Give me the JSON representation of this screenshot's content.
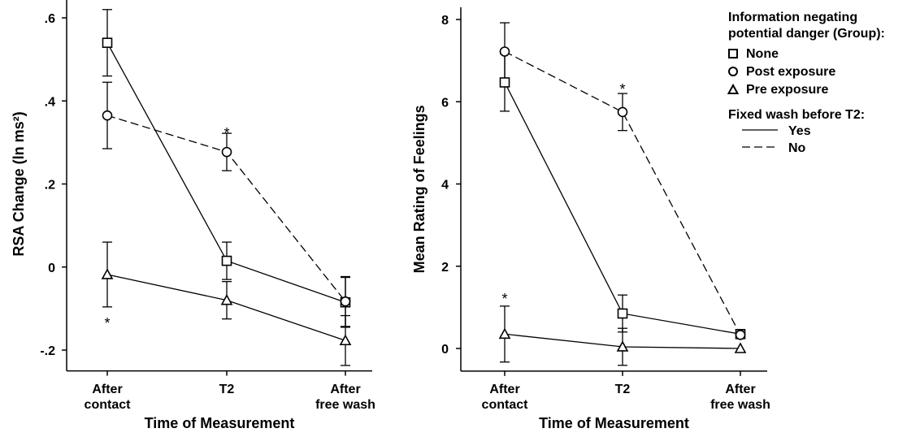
{
  "legend": {
    "title_line1": "Information negating",
    "title_line2": "potential danger (Group):",
    "groups": [
      {
        "label": "None",
        "marker": "square"
      },
      {
        "label": "Post exposure",
        "marker": "circle"
      },
      {
        "label": "Pre exposure",
        "marker": "triangle"
      }
    ],
    "wash_title": "Fixed wash before T2:",
    "wash": [
      {
        "label": "Yes",
        "line": "solid"
      },
      {
        "label": "No",
        "line": "dashed"
      }
    ]
  },
  "chart_data": [
    {
      "type": "line",
      "xlabel": "Time of Measurement",
      "ylabel": "RSA Change (ln ms²)",
      "categories": [
        [
          "After",
          "contact"
        ],
        [
          "T2"
        ],
        [
          "After",
          "free wash"
        ]
      ],
      "ylim": [
        -0.25,
        0.65
      ],
      "yticks": [
        -0.2,
        0,
        0.2,
        0.4,
        0.6
      ],
      "ytick_labels": [
        "-.2",
        "0",
        ".2",
        ".4",
        ".6"
      ],
      "grid": false,
      "series": [
        {
          "group": "None",
          "marker": "square",
          "line": "solid",
          "values": [
            0.54,
            0.015,
            -0.085
          ],
          "err": [
            0.08,
            0.045,
            0.06
          ]
        },
        {
          "group": "Post exposure",
          "marker": "circle",
          "line": "dashed",
          "values": [
            0.365,
            0.277,
            -0.083
          ],
          "err": [
            0.08,
            0.045,
            0.06
          ]
        },
        {
          "group": "Pre exposure",
          "marker": "triangle",
          "line": "solid",
          "values": [
            -0.018,
            -0.08,
            -0.177
          ],
          "err": [
            0.078,
            0.045,
            0.06
          ]
        }
      ],
      "annotations": [
        {
          "text": "*",
          "x_index": 1,
          "y": 0.33
        },
        {
          "text": "*",
          "x_index": 0,
          "y": -0.128
        }
      ]
    },
    {
      "type": "line",
      "xlabel": "Time of Measurement",
      "ylabel": "Mean Rating of Feelings",
      "categories": [
        [
          "After",
          "contact"
        ],
        [
          "T2"
        ],
        [
          "After",
          "free wash"
        ]
      ],
      "ylim": [
        -0.55,
        8.3
      ],
      "yticks": [
        0,
        2,
        4,
        6,
        8
      ],
      "ytick_labels": [
        "0",
        "2",
        "4",
        "6",
        "8"
      ],
      "grid": false,
      "series": [
        {
          "group": "None",
          "marker": "square",
          "line": "solid",
          "values": [
            6.47,
            0.85,
            0.35
          ],
          "err": [
            0.7,
            0.45,
            0.0
          ]
        },
        {
          "group": "Post exposure",
          "marker": "circle",
          "line": "dashed",
          "values": [
            7.22,
            5.75,
            0.33
          ],
          "err": [
            0.7,
            0.45,
            0.0
          ]
        },
        {
          "group": "Pre exposure",
          "marker": "triangle",
          "line": "solid",
          "values": [
            0.35,
            0.04,
            0.0
          ],
          "err": [
            0.68,
            0.45,
            0.0
          ]
        }
      ],
      "annotations": [
        {
          "text": "*",
          "x_index": 1,
          "y": 6.38
        },
        {
          "text": "*",
          "x_index": 0,
          "y": 1.28
        }
      ]
    }
  ]
}
